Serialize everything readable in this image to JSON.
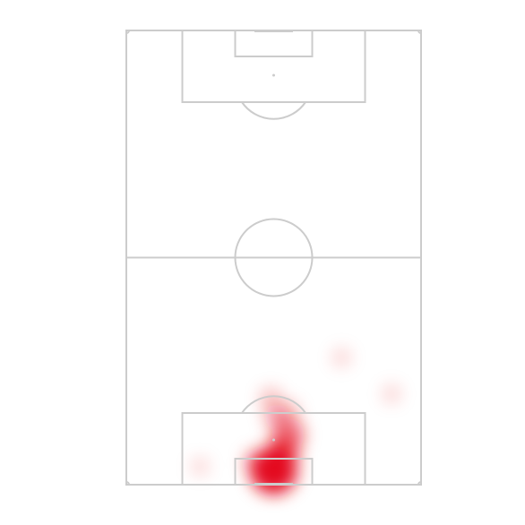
{
  "chart_data": {
    "type": "heatmap",
    "title": "",
    "pitch": {
      "orientation": "vertical",
      "line_color": "#cccccc",
      "background": "#ffffff"
    },
    "heat_color": "#e30613",
    "hotspots": [
      {
        "x": 0.5,
        "y": 0.97,
        "intensity": 1.0
      },
      {
        "x": 0.53,
        "y": 0.93,
        "intensity": 0.55
      },
      {
        "x": 0.55,
        "y": 0.89,
        "intensity": 0.5
      },
      {
        "x": 0.51,
        "y": 0.85,
        "intensity": 0.25
      },
      {
        "x": 0.49,
        "y": 0.81,
        "intensity": 0.15
      },
      {
        "x": 0.55,
        "y": 0.84,
        "intensity": 0.15
      },
      {
        "x": 0.73,
        "y": 0.72,
        "intensity": 0.05
      },
      {
        "x": 0.9,
        "y": 0.8,
        "intensity": 0.05
      },
      {
        "x": 0.25,
        "y": 0.96,
        "intensity": 0.04
      },
      {
        "x": 0.44,
        "y": 0.95,
        "intensity": 0.25
      }
    ],
    "axes": "none",
    "grid": false,
    "legend": "none"
  }
}
